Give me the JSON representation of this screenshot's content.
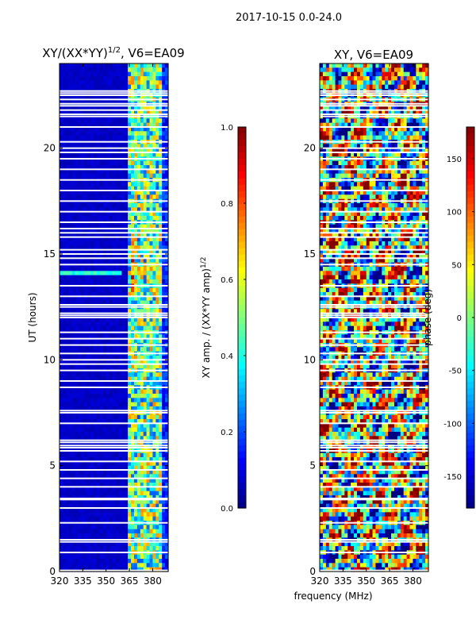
{
  "suptitle": "2017-10-15 0.0-24.0",
  "shared_xlabel": "frequency (MHz)",
  "chart_data": [
    {
      "type": "heatmap",
      "title": "XY/(XX*YY)",
      "title_exponent": "1/2",
      "title_suffix": ", V6=EA09",
      "xlabel": "",
      "ylabel": "UT (hours)",
      "xlim": [
        320,
        390
      ],
      "ylim": [
        0,
        24
      ],
      "xticks": [
        320,
        335,
        350,
        365,
        380
      ],
      "yticks": [
        0,
        5,
        10,
        15,
        20
      ],
      "colormap": "jet",
      "colorbar": {
        "label": "XY amp. / (XX*YY amp)",
        "label_exponent": "1/2",
        "range": [
          0.0,
          1.0
        ],
        "ticks": [
          "0.0",
          "0.2",
          "0.4",
          "0.6",
          "0.8",
          "1.0"
        ],
        "tick_values": [
          0.0,
          0.2,
          0.4,
          0.6,
          0.8,
          1.0
        ]
      },
      "description": "Normalized cross-hand amplitude vs frequency and UT; mostly low (~0.05) with elevated values (0.3-0.9) above ~364 MHz and a brief enhancement near UT 14.1 h",
      "bands": [
        {
          "freq_range": [
            320,
            364
          ],
          "typical_value": 0.05
        },
        {
          "freq_range": [
            364,
            390
          ],
          "typical_value": 0.45
        },
        {
          "freq_range": [
            366,
            368
          ],
          "typical_value": 0.75,
          "ut_range": [
            13,
            16
          ]
        },
        {
          "freq_range": [
            320,
            360
          ],
          "typical_value": 0.4,
          "ut_range": [
            14.0,
            14.2
          ]
        }
      ]
    },
    {
      "type": "heatmap",
      "title": "XY, V6=EA09",
      "xlabel": "",
      "ylabel": "",
      "xlim": [
        320,
        390
      ],
      "ylim": [
        0,
        24
      ],
      "xticks": [
        320,
        335,
        350,
        365,
        380
      ],
      "yticks": [
        0,
        5,
        10,
        15,
        20
      ],
      "colormap": "jet",
      "colorbar": {
        "label": "phase (deg)",
        "range": [
          -180,
          180
        ],
        "ticks": [
          "-150",
          "-100",
          "-50",
          "0",
          "50",
          "100",
          "150"
        ],
        "tick_values": [
          -150,
          -100,
          -50,
          0,
          50,
          100,
          150
        ]
      },
      "description": "Cross-hand phase vs frequency and UT; noisy, spanning the full -180 to 180 deg range"
    }
  ],
  "missing_ut_hours": [
    0.05,
    0.9,
    1.4,
    1.5,
    2.3,
    3.0,
    3.4,
    3.45,
    4.0,
    4.4,
    4.8,
    5.2,
    5.7,
    5.85,
    5.95,
    6.1,
    6.2,
    7.0,
    7.5,
    7.6,
    8.7,
    9.0,
    9.5,
    9.8,
    10.0,
    10.3,
    10.7,
    11.0,
    11.3,
    12.0,
    12.1,
    12.2,
    12.5,
    12.6,
    13.0,
    13.5,
    14.5,
    14.8,
    15.0,
    15.2,
    15.8,
    16.0,
    16.2,
    16.5,
    17.0,
    17.5,
    18.0,
    18.5,
    19.0,
    19.5,
    19.8,
    20.0,
    20.3,
    21.0,
    21.5,
    21.6,
    21.8,
    22.0,
    22.1,
    22.3,
    22.5,
    22.6,
    22.7
  ]
}
